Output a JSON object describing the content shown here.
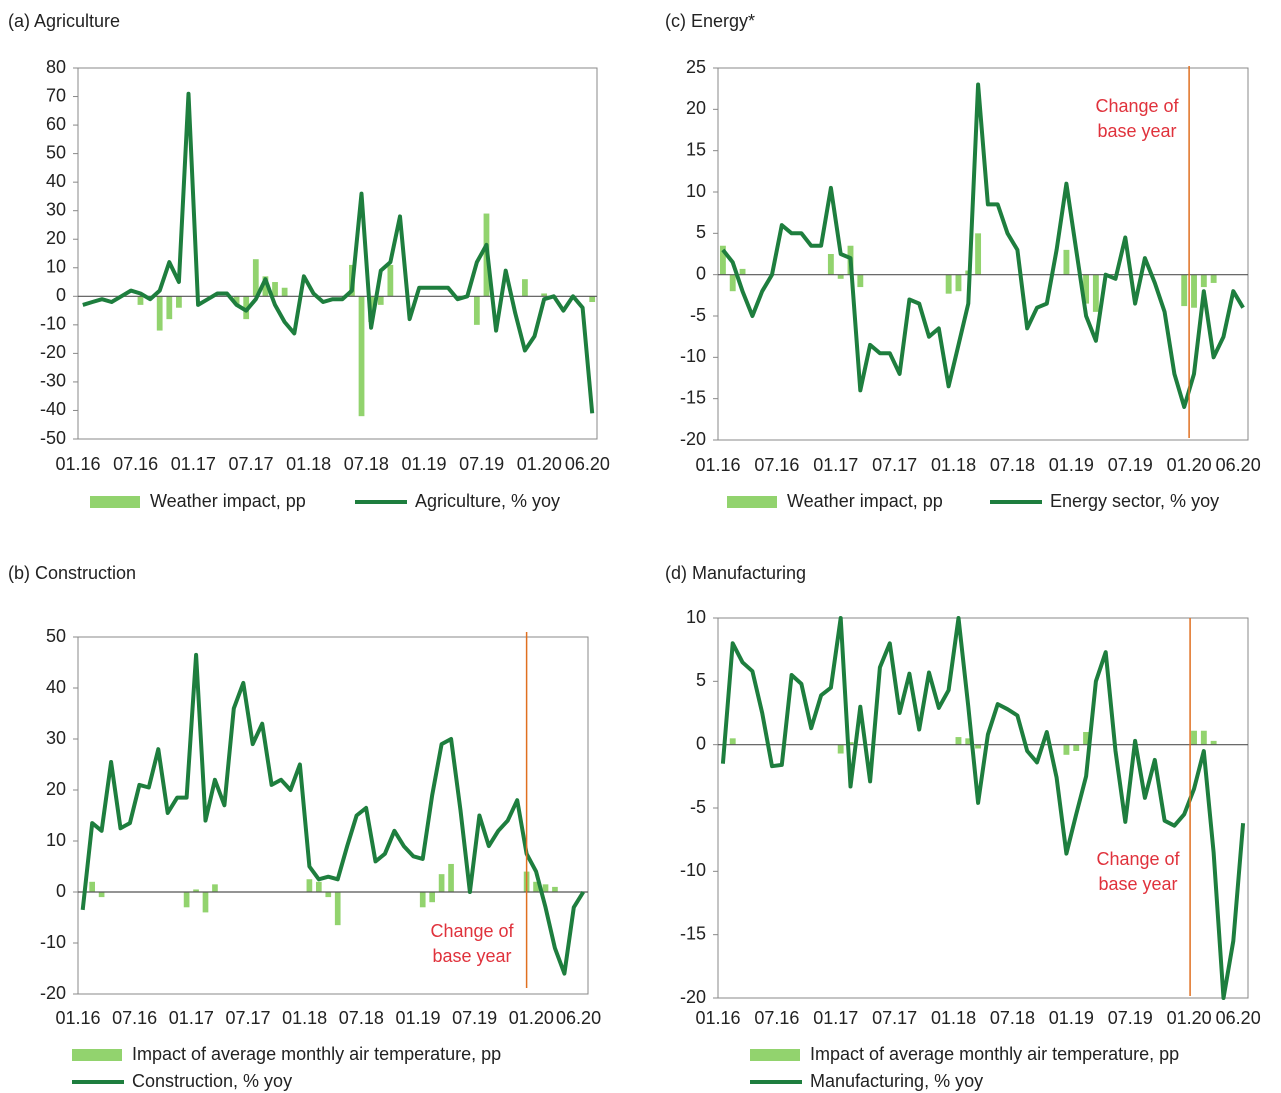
{
  "chart_data": [
    {
      "type": "combo",
      "title": "(a) Agriculture",
      "categories": [
        "01.16",
        null,
        null,
        null,
        null,
        null,
        "07.16",
        null,
        null,
        null,
        null,
        null,
        "01.17",
        null,
        null,
        null,
        null,
        null,
        "07.17",
        null,
        null,
        null,
        null,
        null,
        "01.18",
        null,
        null,
        null,
        null,
        null,
        "07.18",
        null,
        null,
        null,
        null,
        null,
        "01.19",
        null,
        null,
        null,
        null,
        null,
        "07.19",
        null,
        null,
        null,
        null,
        null,
        "01.20",
        null,
        null,
        null,
        null,
        "06.20"
      ],
      "ylim": [
        -50,
        80
      ],
      "yticks": [
        -50,
        -40,
        -30,
        -20,
        -10,
        0,
        10,
        20,
        30,
        40,
        50,
        60,
        70,
        80
      ],
      "series": [
        {
          "name": "Weather impact, pp",
          "type": "bar",
          "color": "#92d36e",
          "values": [
            0,
            0,
            0,
            0,
            0,
            0,
            -3,
            0,
            -12,
            -8,
            -4,
            0,
            0,
            0,
            0,
            0,
            -3,
            -8,
            13,
            7,
            5,
            3,
            0,
            0,
            0,
            0,
            0,
            0,
            11,
            -42,
            -9,
            -3,
            11,
            0,
            0,
            0,
            0,
            0,
            0,
            0,
            0,
            -10,
            29,
            0,
            0,
            0,
            6,
            0,
            1,
            0,
            0,
            0,
            0,
            -2
          ]
        },
        {
          "name": "Agriculture, % yoy",
          "type": "line",
          "color": "#1e7e3e",
          "values": [
            -3,
            -2,
            -1,
            -2,
            0,
            2,
            1,
            -1,
            2,
            12,
            5,
            71,
            -3,
            -1,
            1,
            1,
            -3,
            -5,
            -1,
            6,
            -3,
            -9,
            -13,
            7,
            1,
            -2,
            -1,
            -1,
            2,
            36,
            -11,
            9,
            12,
            28,
            -8,
            3,
            3,
            3,
            3,
            -1,
            0,
            12,
            18,
            -12,
            9,
            -6,
            -19,
            -14,
            -1,
            0,
            -5,
            0,
            -4,
            -41
          ]
        }
      ]
    },
    {
      "type": "combo",
      "title": "(c) Energy*",
      "categories": [
        "01.16",
        null,
        null,
        null,
        null,
        null,
        "07.16",
        null,
        null,
        null,
        null,
        null,
        "01.17",
        null,
        null,
        null,
        null,
        null,
        "07.17",
        null,
        null,
        null,
        null,
        null,
        "01.18",
        null,
        null,
        null,
        null,
        null,
        "07.18",
        null,
        null,
        null,
        null,
        null,
        "01.19",
        null,
        null,
        null,
        null,
        null,
        "07.19",
        null,
        null,
        null,
        null,
        null,
        "01.20",
        null,
        null,
        null,
        null,
        "06.20"
      ],
      "ylim": [
        -20,
        25
      ],
      "yticks": [
        -20,
        -15,
        -10,
        -5,
        0,
        5,
        10,
        15,
        20,
        25
      ],
      "annotation": [
        "Change of",
        "base year"
      ],
      "series": [
        {
          "name": "Weather impact, pp",
          "type": "bar",
          "color": "#92d36e",
          "values": [
            3.5,
            -2,
            0.7,
            0,
            0,
            0,
            0,
            0,
            0,
            0,
            0,
            2.5,
            -0.5,
            3.5,
            -1.5,
            0,
            0,
            0,
            0,
            0,
            0,
            0,
            0,
            -2.3,
            -2,
            0.5,
            5,
            0,
            0,
            0,
            0,
            0,
            0,
            0,
            0,
            3,
            0,
            -3.5,
            -4.5,
            0,
            0,
            0,
            0,
            0,
            0,
            0,
            0,
            -3.8,
            -4,
            -1.5,
            -1,
            0,
            0,
            0
          ]
        },
        {
          "name": "Energy sector, % yoy",
          "type": "line",
          "color": "#1e7e3e",
          "values": [
            3,
            1.5,
            -2,
            -5,
            -2,
            0,
            6,
            5,
            5,
            3.5,
            3.5,
            10.5,
            2.5,
            2,
            -14,
            -8.5,
            -9.5,
            -9.5,
            -12,
            -3,
            -3.5,
            -7.5,
            -6.5,
            -13.5,
            -8.5,
            -3.5,
            23,
            8.5,
            8.5,
            5,
            3,
            -6.5,
            -4,
            -3.5,
            3,
            11,
            3,
            -5,
            -8,
            0,
            -0.5,
            4.5,
            -3.5,
            2,
            -1,
            -4.5,
            -12,
            -16,
            -12,
            -2,
            -10,
            -7.5,
            -2,
            -4
          ]
        }
      ]
    },
    {
      "type": "combo",
      "title": "(b) Construction",
      "categories": [
        "01.16",
        null,
        null,
        null,
        null,
        null,
        "07.16",
        null,
        null,
        null,
        null,
        null,
        "01.17",
        null,
        null,
        null,
        null,
        null,
        "07.17",
        null,
        null,
        null,
        null,
        null,
        "01.18",
        null,
        null,
        null,
        null,
        null,
        "07.18",
        null,
        null,
        null,
        null,
        null,
        "01.19",
        null,
        null,
        null,
        null,
        null,
        "07.19",
        null,
        null,
        null,
        null,
        null,
        "01.20",
        null,
        null,
        null,
        null,
        "06.20"
      ],
      "ylim": [
        -20,
        50
      ],
      "yticks": [
        -20,
        -10,
        0,
        10,
        20,
        30,
        40,
        50
      ],
      "annotation": [
        "Change of",
        "base year"
      ],
      "series": [
        {
          "name": "Impact of average monthly air temperature, pp",
          "type": "bar",
          "color": "#92d36e",
          "values": [
            0,
            2,
            -1,
            0,
            0,
            0,
            0,
            0,
            0,
            0,
            0,
            -3,
            0.5,
            -4,
            1.5,
            0,
            0,
            0,
            0,
            0,
            0,
            0,
            0,
            0,
            2.5,
            2,
            -1,
            -6.5,
            0,
            0,
            0,
            0,
            0,
            0,
            0,
            0,
            -3,
            -2,
            3.5,
            5.5,
            0,
            0,
            0,
            0,
            0,
            0,
            0,
            4,
            2,
            1.5,
            1,
            0,
            0,
            0
          ]
        },
        {
          "name": "Construction, % yoy",
          "type": "line",
          "color": "#1e7e3e",
          "values": [
            -3.5,
            13.5,
            12,
            25.5,
            12.5,
            13.5,
            21,
            20.5,
            28,
            15.5,
            18.5,
            18.5,
            46.5,
            14,
            22,
            17,
            36,
            41,
            29,
            33,
            21,
            22,
            20,
            25,
            5,
            2.5,
            3,
            2.5,
            9,
            15,
            16.5,
            6,
            7.5,
            12,
            9,
            7,
            6.5,
            19,
            29,
            30,
            16,
            0,
            15,
            9,
            12,
            14,
            18,
            7.5,
            4,
            -3,
            -11,
            -16,
            -3,
            0
          ]
        }
      ]
    },
    {
      "type": "combo",
      "title": "(d) Manufacturing",
      "categories": [
        "01.16",
        null,
        null,
        null,
        null,
        null,
        "07.16",
        null,
        null,
        null,
        null,
        null,
        "01.17",
        null,
        null,
        null,
        null,
        null,
        "07.17",
        null,
        null,
        null,
        null,
        null,
        "01.18",
        null,
        null,
        null,
        null,
        null,
        "07.18",
        null,
        null,
        null,
        null,
        null,
        "01.19",
        null,
        null,
        null,
        null,
        null,
        "07.19",
        null,
        null,
        null,
        null,
        null,
        "01.20",
        null,
        null,
        null,
        null,
        "06.20"
      ],
      "ylim": [
        -20,
        10
      ],
      "yticks": [
        -20,
        -15,
        -10,
        -5,
        0,
        5,
        10
      ],
      "annotation": [
        "Change of",
        "base year"
      ],
      "series": [
        {
          "name": "Impact of average monthly air temperature, pp",
          "type": "bar",
          "color": "#92d36e",
          "values": [
            0,
            0.5,
            0,
            0,
            0,
            0,
            0,
            0,
            0,
            0,
            0,
            0,
            -0.7,
            0.2,
            0,
            0,
            0,
            0,
            0,
            0,
            0,
            0,
            0,
            0,
            0.6,
            0.5,
            -0.3,
            0,
            0,
            0,
            0,
            0,
            0,
            0,
            0,
            -0.8,
            -0.5,
            1,
            0,
            0,
            0,
            0,
            0,
            0,
            0,
            0,
            0,
            0,
            1.1,
            1.1,
            0.3,
            0,
            0,
            0
          ]
        },
        {
          "name": "Manufacturing, % yoy",
          "type": "line",
          "color": "#1e7e3e",
          "values": [
            -1.5,
            8,
            6.5,
            5.8,
            2.5,
            -1.7,
            -1.6,
            5.5,
            4.8,
            1.3,
            3.9,
            4.5,
            10,
            -3.3,
            3,
            -2.9,
            6.1,
            8,
            2.5,
            5.6,
            1.2,
            5.7,
            2.9,
            4.3,
            10,
            3,
            -4.6,
            0.8,
            3.2,
            2.8,
            2.3,
            -0.5,
            -1.4,
            1,
            -2.6,
            -8.6,
            -5.5,
            -2.5,
            5,
            7.3,
            -0.5,
            -6.1,
            0.3,
            -4.2,
            -1.2,
            -6,
            -6.4,
            -5.5,
            -3.5,
            -0.5,
            -8.5,
            -20,
            -15.5,
            -6.2
          ]
        }
      ]
    }
  ]
}
